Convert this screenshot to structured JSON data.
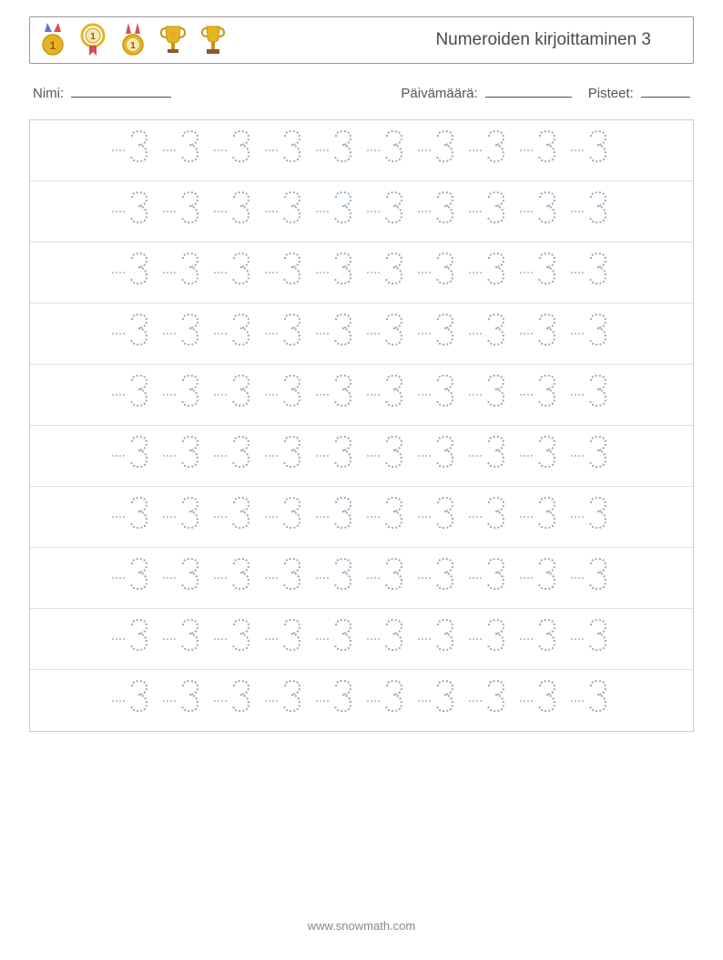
{
  "header": {
    "title": "Numeroiden kirjoittaminen 3",
    "icons": [
      "medal-1",
      "medal-2",
      "medal-3",
      "trophy-star",
      "trophy-cup"
    ]
  },
  "info": {
    "name_label": "Nimi:",
    "date_label": "Päivämäärä:",
    "score_label": "Pisteet:",
    "name_blank_width": 110,
    "date_blank_width": 95,
    "score_blank_width": 54
  },
  "worksheet": {
    "digit": "3",
    "digit_color": "#9aaab9",
    "rows": 10,
    "cols": 10,
    "row_border_color": "#e0e0e0",
    "outer_border_color": "#cccccc",
    "guide_dot_color": "#b8c8d8"
  },
  "footer": {
    "text": "www.snowmath.com"
  },
  "colors": {
    "gold": "#e6b422",
    "gold_dark": "#c89612",
    "red": "#d94f4f",
    "blue": "#5a7fb8",
    "orange": "#f0a030",
    "brown": "#8a5a2a"
  }
}
